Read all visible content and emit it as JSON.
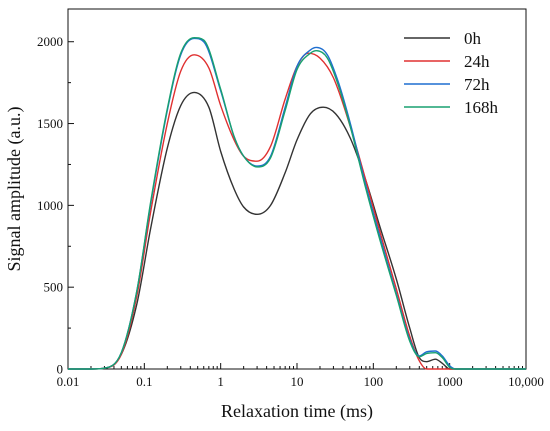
{
  "chart_data": {
    "type": "line",
    "title": "",
    "xlabel": "Relaxation time (ms)",
    "ylabel": "Signal amplitude (a.u.)",
    "x_scale": "log",
    "xlim": [
      0.01,
      10000
    ],
    "ylim": [
      0,
      2200
    ],
    "x_ticks": [
      0.01,
      0.1,
      1,
      10,
      100,
      1000,
      10000
    ],
    "x_tick_labels": [
      "0.01",
      "0.1",
      "1",
      "10",
      "100",
      "1000",
      "10,000"
    ],
    "y_ticks": [
      0,
      500,
      1000,
      1500,
      2000
    ],
    "y_tick_labels": [
      "0",
      "500",
      "1000",
      "1500",
      "2000"
    ],
    "grid": false,
    "legend_position": "top-right",
    "series": [
      {
        "name": "0h",
        "color": "#333333",
        "points": [
          [
            0.01,
            0
          ],
          [
            0.02,
            0
          ],
          [
            0.03,
            5
          ],
          [
            0.05,
            90
          ],
          [
            0.08,
            400
          ],
          [
            0.12,
            850
          ],
          [
            0.2,
            1350
          ],
          [
            0.3,
            1610
          ],
          [
            0.45,
            1690
          ],
          [
            0.7,
            1600
          ],
          [
            1,
            1330
          ],
          [
            1.5,
            1100
          ],
          [
            2,
            990
          ],
          [
            3,
            945
          ],
          [
            4.5,
            1000
          ],
          [
            7,
            1200
          ],
          [
            10,
            1400
          ],
          [
            15,
            1560
          ],
          [
            22,
            1600
          ],
          [
            32,
            1560
          ],
          [
            50,
            1410
          ],
          [
            80,
            1150
          ],
          [
            120,
            880
          ],
          [
            200,
            550
          ],
          [
            300,
            250
          ],
          [
            400,
            70
          ],
          [
            500,
            45
          ],
          [
            650,
            60
          ],
          [
            800,
            35
          ],
          [
            1000,
            0
          ],
          [
            10000,
            0
          ]
        ]
      },
      {
        "name": "24h",
        "color": "#e03030",
        "points": [
          [
            0.01,
            0
          ],
          [
            0.02,
            0
          ],
          [
            0.03,
            5
          ],
          [
            0.05,
            90
          ],
          [
            0.08,
            450
          ],
          [
            0.12,
            950
          ],
          [
            0.2,
            1500
          ],
          [
            0.3,
            1820
          ],
          [
            0.45,
            1920
          ],
          [
            0.7,
            1840
          ],
          [
            1,
            1610
          ],
          [
            1.5,
            1400
          ],
          [
            2,
            1300
          ],
          [
            3,
            1270
          ],
          [
            4.5,
            1360
          ],
          [
            7,
            1650
          ],
          [
            10,
            1850
          ],
          [
            14,
            1930
          ],
          [
            20,
            1900
          ],
          [
            30,
            1780
          ],
          [
            50,
            1480
          ],
          [
            80,
            1150
          ],
          [
            120,
            850
          ],
          [
            200,
            490
          ],
          [
            300,
            200
          ],
          [
            400,
            50
          ],
          [
            500,
            0
          ],
          [
            700,
            0
          ],
          [
            10000,
            0
          ]
        ]
      },
      {
        "name": "72h",
        "color": "#1f6fd0",
        "points": [
          [
            0.01,
            0
          ],
          [
            0.02,
            0
          ],
          [
            0.03,
            5
          ],
          [
            0.05,
            100
          ],
          [
            0.08,
            480
          ],
          [
            0.12,
            1000
          ],
          [
            0.2,
            1580
          ],
          [
            0.3,
            1920
          ],
          [
            0.45,
            2020
          ],
          [
            0.6,
            2000
          ],
          [
            1,
            1700
          ],
          [
            1.5,
            1420
          ],
          [
            2,
            1300
          ],
          [
            3,
            1240
          ],
          [
            4.5,
            1300
          ],
          [
            7,
            1600
          ],
          [
            10,
            1850
          ],
          [
            15,
            1950
          ],
          [
            18,
            1965
          ],
          [
            25,
            1920
          ],
          [
            35,
            1750
          ],
          [
            50,
            1500
          ],
          [
            80,
            1120
          ],
          [
            120,
            820
          ],
          [
            200,
            460
          ],
          [
            300,
            180
          ],
          [
            400,
            80
          ],
          [
            500,
            105
          ],
          [
            650,
            110
          ],
          [
            800,
            80
          ],
          [
            1000,
            20
          ],
          [
            1200,
            0
          ],
          [
            10000,
            0
          ]
        ]
      },
      {
        "name": "168h",
        "color": "#18a070",
        "points": [
          [
            0.01,
            0
          ],
          [
            0.02,
            0
          ],
          [
            0.03,
            5
          ],
          [
            0.05,
            100
          ],
          [
            0.08,
            480
          ],
          [
            0.12,
            1010
          ],
          [
            0.2,
            1590
          ],
          [
            0.3,
            1930
          ],
          [
            0.45,
            2025
          ],
          [
            0.6,
            2010
          ],
          [
            1,
            1710
          ],
          [
            1.5,
            1420
          ],
          [
            2,
            1300
          ],
          [
            3,
            1235
          ],
          [
            4.5,
            1290
          ],
          [
            7,
            1580
          ],
          [
            10,
            1830
          ],
          [
            15,
            1930
          ],
          [
            18,
            1945
          ],
          [
            25,
            1900
          ],
          [
            35,
            1730
          ],
          [
            50,
            1480
          ],
          [
            80,
            1100
          ],
          [
            120,
            800
          ],
          [
            200,
            450
          ],
          [
            300,
            170
          ],
          [
            400,
            75
          ],
          [
            500,
            95
          ],
          [
            650,
            100
          ],
          [
            800,
            70
          ],
          [
            1000,
            10
          ],
          [
            1200,
            0
          ],
          [
            10000,
            0
          ]
        ]
      }
    ]
  }
}
